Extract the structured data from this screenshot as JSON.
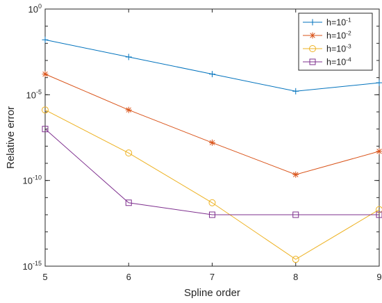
{
  "chart_data": {
    "type": "line",
    "xlabel": "Spline order",
    "ylabel": "Relative error",
    "x": [
      5,
      6,
      7,
      8,
      9
    ],
    "xlim": [
      5,
      9
    ],
    "ylim": [
      1e-15,
      1
    ],
    "yscale": "log",
    "x_ticks": [
      "5",
      "6",
      "7",
      "8",
      "9"
    ],
    "y_ticks": [
      {
        "base": "10",
        "exp": "0",
        "value": 1
      },
      {
        "base": "10",
        "exp": "-5",
        "value": 1e-05
      },
      {
        "base": "10",
        "exp": "-10",
        "value": 1e-10
      },
      {
        "base": "10",
        "exp": "-15",
        "value": 1e-15
      }
    ],
    "grid": false,
    "legend_position": "top-right",
    "series": [
      {
        "name": "h=10",
        "name_exp": "-1",
        "color": "#0072BD",
        "marker": "plus",
        "values": [
          0.016,
          0.0016,
          0.00016,
          1.6e-05,
          5e-05
        ]
      },
      {
        "name": "h=10",
        "name_exp": "-2",
        "color": "#D95319",
        "marker": "asterisk",
        "values": [
          0.00016,
          1.3e-06,
          1.6e-08,
          2.2e-10,
          5e-09
        ]
      },
      {
        "name": "h=10",
        "name_exp": "-3",
        "color": "#EDB120",
        "marker": "circle",
        "values": [
          1.3e-06,
          4e-09,
          5e-12,
          2.5e-15,
          2e-12
        ]
      },
      {
        "name": "h=10",
        "name_exp": "-4",
        "color": "#7E2F8E",
        "marker": "square",
        "values": [
          1e-07,
          5e-12,
          1e-12,
          1e-12,
          1e-12
        ]
      }
    ]
  }
}
